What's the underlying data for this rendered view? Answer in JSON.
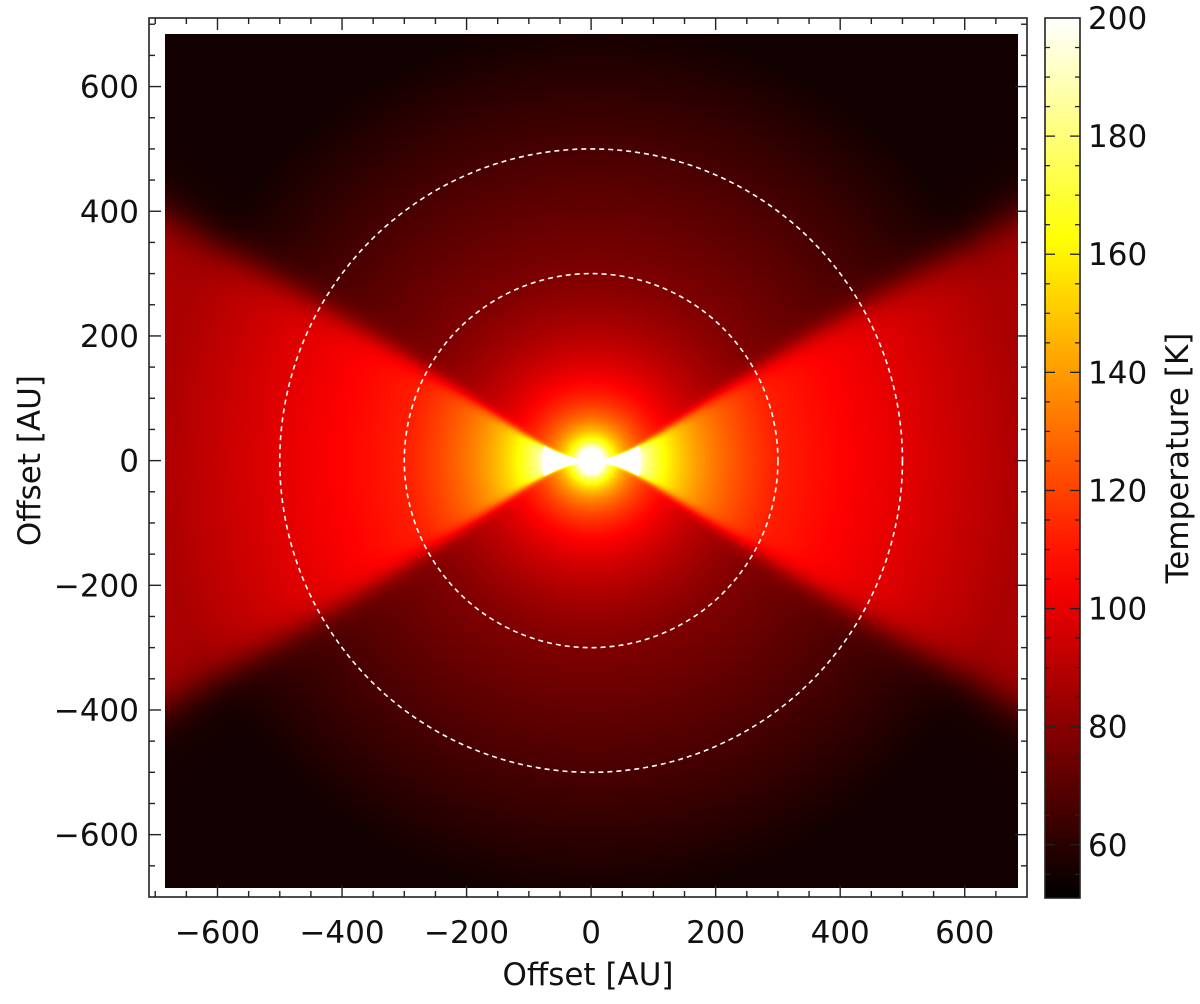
{
  "chart_data": {
    "type": "heatmap",
    "title": "",
    "xlabel": "Offset [AU]",
    "ylabel": "Offset [AU]",
    "xlim": [
      -710,
      700
    ],
    "ylim": [
      -700,
      710
    ],
    "xticks": [
      -600,
      -400,
      -200,
      0,
      200,
      400,
      600
    ],
    "yticks": [
      -600,
      -400,
      -200,
      0,
      200,
      400,
      600
    ],
    "xtick_labels": [
      "−600",
      "−400",
      "−200",
      "0",
      "200",
      "400",
      "600"
    ],
    "ytick_labels": [
      "−600",
      "−400",
      "−200",
      "0",
      "200",
      "400",
      "600"
    ],
    "data_extent": 685,
    "colorbar": {
      "label": "Temperature [K]",
      "range": [
        51,
        200
      ],
      "ticks": [
        60,
        80,
        100,
        120,
        140,
        160,
        180,
        200
      ],
      "tick_labels": [
        "60",
        "80",
        "100",
        "120",
        "140",
        "160",
        "180",
        "200"
      ],
      "colormap": "hot"
    },
    "temperature_model": {
      "center_value": 200,
      "hot_radius": 80,
      "outflow_cavity_half_opening_deg": 30,
      "cavity_value_at_300": 112,
      "cavity_value_at_700": 87,
      "envelope_value_at_300": 78,
      "envelope_value_at_700": 55
    },
    "annotations": [
      {
        "type": "dashed-circle",
        "radius": 300,
        "color": "#ffffff"
      },
      {
        "type": "dashed-circle",
        "radius": 500,
        "color": "#ffffff"
      }
    ],
    "grid": false
  }
}
